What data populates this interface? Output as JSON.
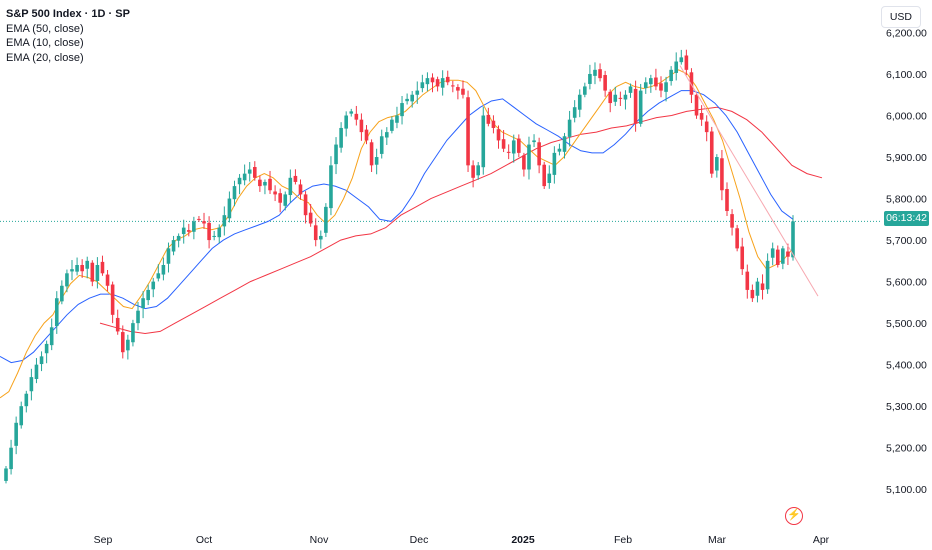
{
  "legend": {
    "title": "S&P 500 Index · 1D · SP",
    "indicators": [
      "EMA (50, close)",
      "EMA (10, close)",
      "EMA (20, close)"
    ]
  },
  "currency_label": "USD",
  "countdown_label": "06:13:42",
  "fast_icon": "lightning-icon",
  "colors": {
    "up": "#26a69a",
    "down": "#f23645",
    "ema50": "#f23645",
    "ema10": "#f7a21b",
    "ema20": "#2962ff",
    "trendline": "#f7a8b0",
    "last_price_line": "#26a69a"
  },
  "chart_data": {
    "type": "candlestick",
    "title": "S&P 500 Index · 1D · SP",
    "x_ticks": [
      "Sep",
      "Oct",
      "Nov",
      "Dec",
      "2025",
      "Feb",
      "Mar",
      "Apr"
    ],
    "y_ticks": [
      5100,
      5200,
      5300,
      5400,
      5500,
      5600,
      5700,
      5800,
      5900,
      6000,
      6100,
      6200
    ],
    "ylim": [
      5050,
      6230
    ],
    "last_price": 5745,
    "closes_approx": [
      5150,
      5200,
      5260,
      5300,
      5330,
      5370,
      5400,
      5420,
      5450,
      5490,
      5560,
      5590,
      5620,
      5630,
      5640,
      5625,
      5650,
      5600,
      5640,
      5620,
      5590,
      5520,
      5480,
      5430,
      5460,
      5500,
      5530,
      5560,
      5580,
      5600,
      5620,
      5640,
      5680,
      5700,
      5710,
      5730,
      5720,
      5745,
      5750,
      5740,
      5700,
      5710,
      5730,
      5760,
      5800,
      5830,
      5850,
      5860,
      5870,
      5850,
      5830,
      5840,
      5820,
      5810,
      5790,
      5810,
      5850,
      5840,
      5810,
      5760,
      5740,
      5700,
      5710,
      5780,
      5880,
      5930,
      5970,
      6000,
      6010,
      5990,
      5960,
      5940,
      5880,
      5900,
      5950,
      5960,
      5990,
      6000,
      6030,
      6040,
      6050,
      6060,
      6080,
      6090,
      6080,
      6070,
      6090,
      6080,
      6070,
      6060,
      6050,
      5880,
      5850,
      5880,
      6000,
      5980,
      5970,
      5940,
      5920,
      5910,
      5940,
      5910,
      5870,
      5930,
      5940,
      5880,
      5830,
      5860,
      5910,
      5920,
      5950,
      5990,
      6020,
      6050,
      6070,
      6100,
      6110,
      6090,
      6060,
      6030,
      6050,
      6040,
      6050,
      6070,
      5980,
      6060,
      6080,
      6090,
      6070,
      6060,
      6080,
      6110,
      6130,
      6140,
      6110,
      6050,
      6000,
      5990,
      5960,
      5860,
      5900,
      5820,
      5770,
      5730,
      5680,
      5630,
      5580,
      5560,
      5600,
      5580,
      5650,
      5680,
      5640,
      5680,
      5660,
      5745
    ],
    "ema10_approx": [
      5320,
      5335,
      5380,
      5430,
      5470,
      5500,
      5520,
      5560,
      5595,
      5615,
      5610,
      5600,
      5580,
      5560,
      5540,
      5535,
      5565,
      5600,
      5640,
      5680,
      5700,
      5710,
      5725,
      5730,
      5725,
      5730,
      5760,
      5800,
      5830,
      5850,
      5860,
      5850,
      5830,
      5820,
      5800,
      5790,
      5760,
      5740,
      5760,
      5800,
      5850,
      5920,
      5960,
      5985,
      5995,
      6000,
      6010,
      6030,
      6050,
      6065,
      6080,
      6085,
      6085,
      6080,
      6060,
      6020,
      5980,
      5960,
      5950,
      5940,
      5920,
      5900,
      5890,
      5880,
      5900,
      5930,
      5960,
      5990,
      6020,
      6050,
      6070,
      6080,
      6070,
      6065,
      6070,
      6080,
      6095,
      6110,
      6100,
      6070,
      6030,
      5990,
      5940,
      5870,
      5800,
      5720,
      5660,
      5630,
      5640,
      5655,
      5680
    ],
    "ema20_approx": [
      5420,
      5405,
      5410,
      5430,
      5460,
      5490,
      5520,
      5545,
      5560,
      5570,
      5570,
      5560,
      5545,
      5535,
      5540,
      5560,
      5590,
      5620,
      5650,
      5680,
      5700,
      5715,
      5725,
      5735,
      5745,
      5760,
      5790,
      5815,
      5830,
      5835,
      5830,
      5820,
      5800,
      5780,
      5750,
      5745,
      5770,
      5810,
      5860,
      5900,
      5940,
      5970,
      6000,
      6020,
      6035,
      6040,
      6020,
      6000,
      5980,
      5965,
      5950,
      5930,
      5915,
      5910,
      5910,
      5930,
      5955,
      5985,
      6010,
      6030,
      6045,
      6060,
      6060,
      6050,
      6030,
      6000,
      5960,
      5910,
      5860,
      5810,
      5770,
      5750
    ],
    "ema50_approx": [
      5500,
      5490,
      5480,
      5475,
      5480,
      5500,
      5520,
      5540,
      5560,
      5580,
      5600,
      5615,
      5630,
      5645,
      5660,
      5680,
      5700,
      5710,
      5715,
      5730,
      5760,
      5780,
      5800,
      5815,
      5830,
      5845,
      5860,
      5880,
      5900,
      5920,
      5935,
      5945,
      5955,
      5960,
      5970,
      5975,
      5985,
      5995,
      6000,
      6010,
      6015,
      6020,
      6010,
      5990,
      5960,
      5920,
      5880,
      5860,
      5850
    ],
    "trendline_from": 6120,
    "trendline_to": 5565
  }
}
